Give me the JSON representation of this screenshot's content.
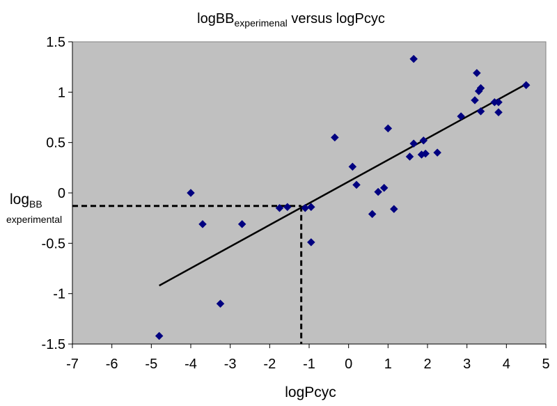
{
  "chart_data": {
    "type": "scatter",
    "title": {
      "main": "logBB",
      "subscript": "experimenal",
      "suffix": " versus logPcyc"
    },
    "xlabel": "logPcyc",
    "ylabel": {
      "main": "log",
      "subscript": "BB",
      "line2": "experimental"
    },
    "xlim": [
      -7,
      5
    ],
    "ylim": [
      -1.5,
      1.5
    ],
    "x_ticks": [
      -7,
      -6,
      -5,
      -4,
      -3,
      -2,
      -1,
      0,
      1,
      2,
      3,
      4,
      5
    ],
    "y_ticks": [
      {
        "value": 1.5,
        "label": "1.5"
      },
      {
        "value": 1,
        "label": "1"
      },
      {
        "value": 0.5,
        "label": "0.5"
      },
      {
        "value": 0,
        "label": "0"
      },
      {
        "value": -0.5,
        "label": "-0.5"
      },
      {
        "value": -1,
        "label": "-1"
      },
      {
        "value": -1.5,
        "label": "-1.5"
      }
    ],
    "grid": false,
    "legend": "none",
    "plot_background": "#c0c0c0",
    "marker_color": "#000080",
    "line_color": "#000000",
    "points": [
      {
        "x": -4.8,
        "y": -1.42
      },
      {
        "x": -4.0,
        "y": 0.0
      },
      {
        "x": -3.7,
        "y": -0.31
      },
      {
        "x": -3.25,
        "y": -1.1
      },
      {
        "x": -2.7,
        "y": -0.31
      },
      {
        "x": -1.75,
        "y": -0.15
      },
      {
        "x": -1.55,
        "y": -0.14
      },
      {
        "x": -1.1,
        "y": -0.15
      },
      {
        "x": -0.95,
        "y": -0.14
      },
      {
        "x": -0.95,
        "y": -0.49
      },
      {
        "x": -0.35,
        "y": 0.55
      },
      {
        "x": 0.1,
        "y": 0.26
      },
      {
        "x": 0.2,
        "y": 0.08
      },
      {
        "x": 0.6,
        "y": -0.21
      },
      {
        "x": 0.75,
        "y": 0.01
      },
      {
        "x": 0.9,
        "y": 0.05
      },
      {
        "x": 1.0,
        "y": 0.64
      },
      {
        "x": 1.15,
        "y": -0.16
      },
      {
        "x": 1.55,
        "y": 0.36
      },
      {
        "x": 1.65,
        "y": 0.49
      },
      {
        "x": 1.65,
        "y": 1.33
      },
      {
        "x": 1.85,
        "y": 0.38
      },
      {
        "x": 1.9,
        "y": 0.52
      },
      {
        "x": 1.95,
        "y": 0.39
      },
      {
        "x": 2.25,
        "y": 0.4
      },
      {
        "x": 2.85,
        "y": 0.76
      },
      {
        "x": 3.2,
        "y": 0.92
      },
      {
        "x": 3.25,
        "y": 1.19
      },
      {
        "x": 3.3,
        "y": 1.01
      },
      {
        "x": 3.35,
        "y": 1.04
      },
      {
        "x": 3.35,
        "y": 0.81
      },
      {
        "x": 3.7,
        "y": 0.9
      },
      {
        "x": 3.8,
        "y": 0.8
      },
      {
        "x": 3.8,
        "y": 0.9
      },
      {
        "x": 4.5,
        "y": 1.07
      }
    ],
    "trendline": {
      "x1": -4.8,
      "y1": -0.92,
      "x2": 4.5,
      "y2": 1.08
    },
    "reference": {
      "x": -1.2,
      "y": -0.13
    }
  }
}
